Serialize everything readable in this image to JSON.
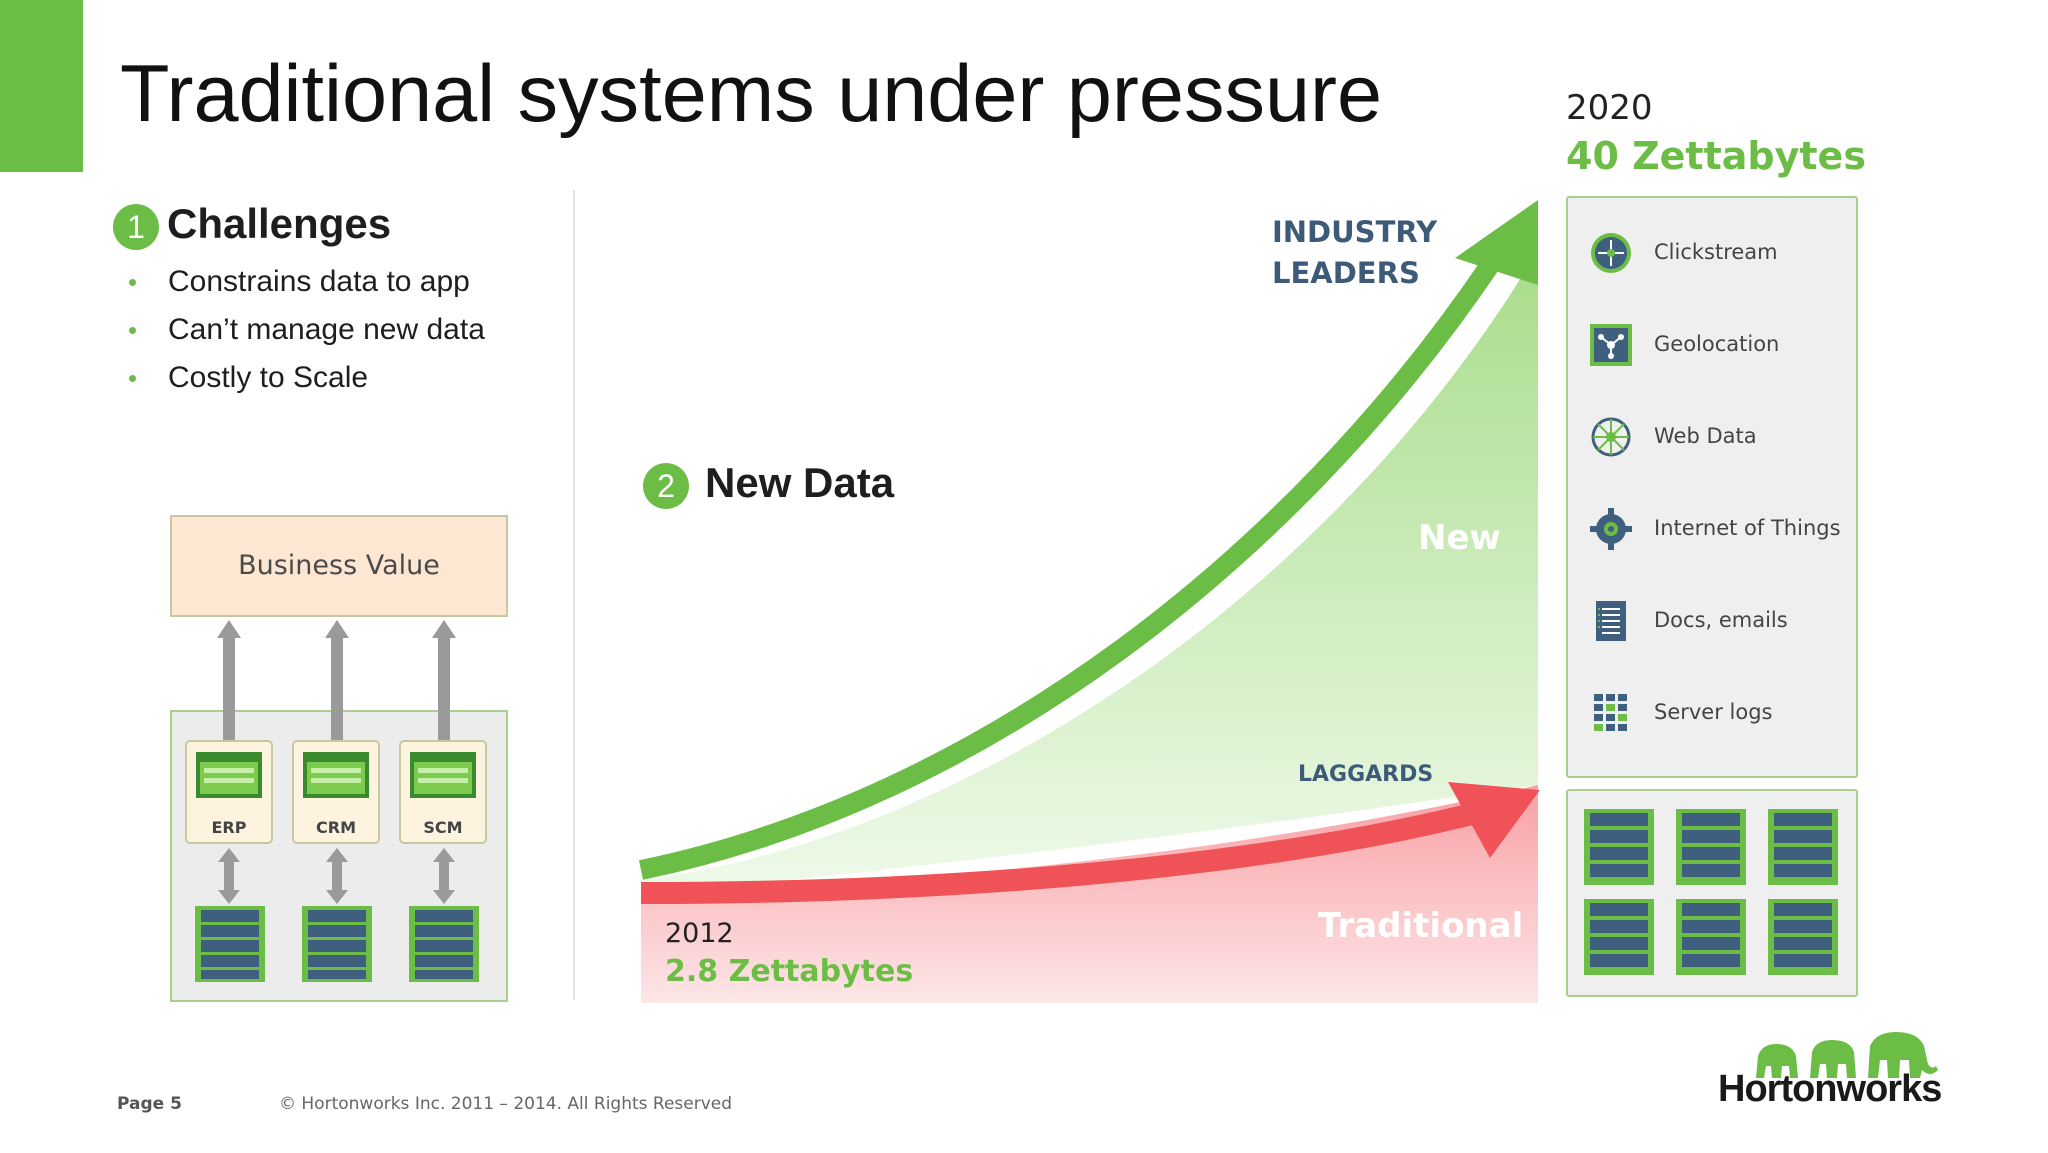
{
  "slide": {
    "title": "Traditional systems under pressure"
  },
  "challenges": {
    "number": "1",
    "title": "Challenges",
    "items": [
      "Constrains data to app",
      "Can’t manage new data",
      "Costly to Scale"
    ]
  },
  "architecture": {
    "business_value": "Business Value",
    "apps": [
      "ERP",
      "CRM",
      "SCM"
    ]
  },
  "new_data": {
    "number": "2",
    "title": "New Data"
  },
  "growth": {
    "start_year": "2012",
    "start_volume": "2.8 Zettabytes",
    "end_year": "2020",
    "end_volume": "40 Zettabytes",
    "industry_leaders": [
      "INDUSTRY",
      "LEADERS"
    ],
    "laggards": "LAGGARDS",
    "new_label": "New",
    "traditional_label": "Traditional"
  },
  "sources": [
    {
      "label": "Clickstream",
      "icon": "clickstream-icon"
    },
    {
      "label": "Geolocation",
      "icon": "geolocation-icon"
    },
    {
      "label": "Web Data",
      "icon": "web-data-icon"
    },
    {
      "label": "Internet of Things",
      "icon": "gear-icon"
    },
    {
      "label": "Docs, emails",
      "icon": "document-icon"
    },
    {
      "label": "Server logs",
      "icon": "grid-icon"
    }
  ],
  "footer": {
    "page": "Page 5",
    "copyright": "© Hortonworks Inc. 2011 – 2014. All Rights Reserved"
  },
  "logo": {
    "text": "Hortonworks"
  },
  "colors": {
    "accent_green": "#6cbd45",
    "laggard_red": "#ef5257",
    "navy_text": "#3d5a78"
  }
}
